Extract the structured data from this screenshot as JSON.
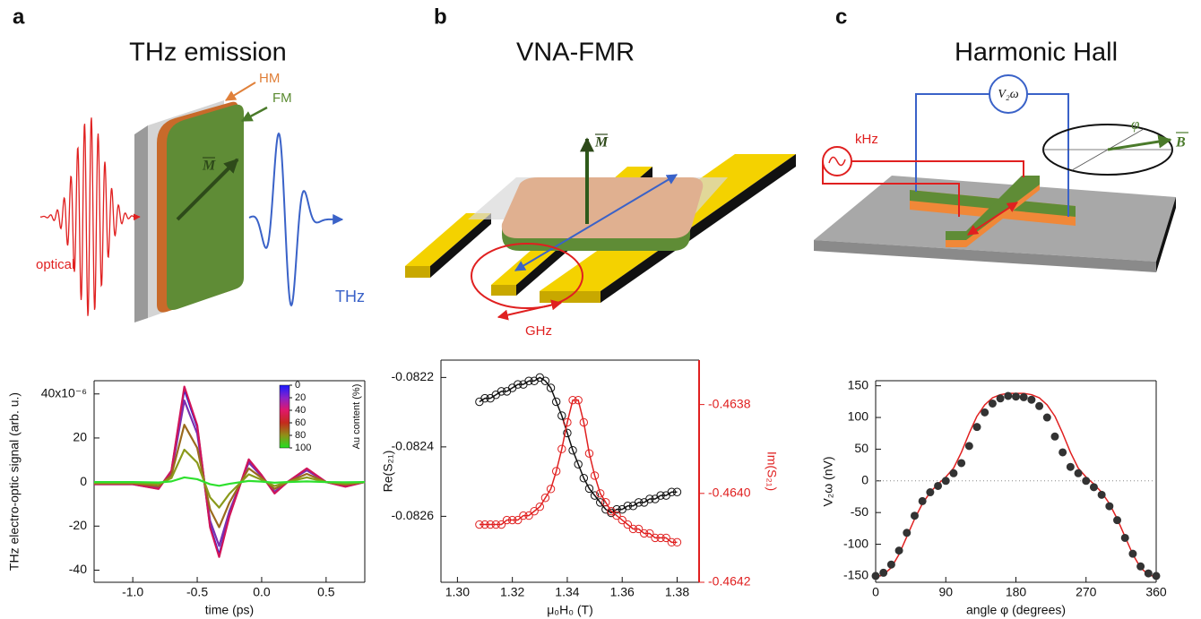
{
  "panels": [
    {
      "letter": "a",
      "title": "THz emission",
      "diagram_labels": [
        "HM",
        "FM",
        "M",
        "optical",
        "THz"
      ]
    },
    {
      "letter": "b",
      "title": "VNA-FMR",
      "diagram_labels": [
        "M",
        "GHz"
      ]
    },
    {
      "letter": "c",
      "title": "Harmonic Hall",
      "diagram_labels": [
        "kHz",
        "V₂ω",
        "φ",
        "B"
      ]
    }
  ],
  "chart_data": [
    {
      "type": "line",
      "xlabel": "time (ps)",
      "ylabel": "THz electro-optic signal (arb. u.)",
      "xlim": [
        -1.3,
        0.8
      ],
      "ylim": [
        -45.5,
        46
      ],
      "xticks": [
        {
          "value": -1,
          "label": "-1.0"
        },
        -0.5,
        {
          "value": 0,
          "label": "0.0"
        },
        0.5
      ],
      "yticks": [
        -40,
        -20,
        0,
        20,
        {
          "value": 40,
          "label": "40x10⁻⁶"
        }
      ],
      "colorbar": {
        "label": "Au content (%)",
        "lim": [
          0,
          100
        ],
        "ticks": [
          0,
          20,
          40,
          60,
          80,
          100
        ],
        "colors": [
          "#1a1aff",
          "#8a22c8",
          "#e0186a",
          "#c42a1c",
          "#8f9018",
          "#22e022"
        ]
      },
      "x": [
        -1.3,
        -1.0,
        -0.8,
        -0.7,
        -0.6,
        -0.5,
        -0.4,
        -0.33,
        -0.25,
        -0.1,
        0.0,
        0.1,
        0.2,
        0.35,
        0.5,
        0.65,
        0.8
      ],
      "series": [
        {
          "color": "#2020e0",
          "values": [
            -1,
            -1,
            -3,
            5,
            42,
            25,
            -20,
            -33,
            -15,
            10,
            3,
            -5,
            0,
            6,
            0,
            -2,
            0
          ]
        },
        {
          "color": "#7a2fb0",
          "values": [
            -0.9,
            -0.9,
            -2.6,
            4.4,
            37,
            22,
            -17.6,
            -29,
            -13.2,
            8.8,
            2.6,
            -4.4,
            0,
            5.3,
            0,
            -1.8,
            0
          ]
        },
        {
          "color": "#d0155a",
          "values": [
            -1,
            -1,
            -3.1,
            5.2,
            43.3,
            25.8,
            -20.6,
            -34,
            -15.5,
            10.3,
            3.1,
            -5.2,
            0,
            6.2,
            0,
            -2.1,
            0
          ]
        },
        {
          "color": "#9a6a1e",
          "values": [
            -0.6,
            -0.6,
            -1.9,
            3.1,
            26,
            15.5,
            -12.4,
            -20.5,
            -9.3,
            6.2,
            1.9,
            -3.1,
            0,
            3.7,
            0,
            -1.2,
            0
          ]
        },
        {
          "color": "#8a9a1a",
          "values": [
            -0.4,
            -0.4,
            -1,
            1.8,
            14.7,
            8.8,
            -7,
            -11.6,
            -5.3,
            3.5,
            1,
            -1.8,
            0,
            2.1,
            0,
            -0.7,
            0
          ]
        },
        {
          "color": "#2ee02e",
          "values": [
            0,
            0,
            -0.2,
            0.3,
            2.1,
            1.3,
            -1,
            -1.7,
            -0.8,
            0.5,
            0.2,
            -0.3,
            0,
            0.3,
            0,
            -0.1,
            0
          ]
        }
      ]
    },
    {
      "type": "scatter",
      "xlabel": "μ₀H₀ (T)",
      "ylabel": "Re(S₂₁)",
      "y2label": "Im(S₂₁)",
      "y2color": "#e02020",
      "xlim": [
        1.294,
        1.388
      ],
      "ylim": [
        -0.08279,
        -0.08215
      ],
      "y2lim": [
        -0.4642,
        -0.4637
      ],
      "xticks": [
        {
          "value": 1.3,
          "label": "1.30"
        },
        1.32,
        1.34,
        1.36,
        1.38
      ],
      "yticks": [
        -0.0826,
        -0.0824,
        -0.0822
      ],
      "y2ticks": [
        -0.4642,
        {
          "value": -0.464,
          "label": "-0.4640"
        },
        -0.4638
      ],
      "x": [
        1.308,
        1.31,
        1.312,
        1.314,
        1.316,
        1.318,
        1.32,
        1.322,
        1.324,
        1.326,
        1.328,
        1.33,
        1.332,
        1.334,
        1.336,
        1.338,
        1.34,
        1.342,
        1.344,
        1.346,
        1.348,
        1.35,
        1.352,
        1.354,
        1.356,
        1.358,
        1.36,
        1.362,
        1.364,
        1.366,
        1.368,
        1.37,
        1.372,
        1.374,
        1.376,
        1.378,
        1.38
      ],
      "series": [
        {
          "color": "#111111",
          "mode": "markers+line",
          "marker": "open",
          "values": [
            -0.08227,
            -0.08226,
            -0.08226,
            -0.08225,
            -0.08224,
            -0.08224,
            -0.08223,
            -0.08222,
            -0.08222,
            -0.08221,
            -0.08221,
            -0.0822,
            -0.08221,
            -0.08223,
            -0.08227,
            -0.08231,
            -0.08236,
            -0.08241,
            -0.08245,
            -0.08249,
            -0.08252,
            -0.08254,
            -0.08256,
            -0.08258,
            -0.08259,
            -0.08258,
            -0.08258,
            -0.08257,
            -0.08257,
            -0.08256,
            -0.08256,
            -0.08255,
            -0.08255,
            -0.08254,
            -0.08254,
            -0.08253,
            -0.08253
          ]
        },
        {
          "color": "#e02020",
          "mode": "markers+line",
          "marker": "open",
          "axis": "y2",
          "values": [
            -0.46407,
            -0.46407,
            -0.46407,
            -0.46407,
            -0.46407,
            -0.46406,
            -0.46406,
            -0.46406,
            -0.46405,
            -0.46405,
            -0.46404,
            -0.46403,
            -0.46401,
            -0.46399,
            -0.46395,
            -0.4639,
            -0.46384,
            -0.46379,
            -0.46379,
            -0.46384,
            -0.46391,
            -0.46396,
            -0.464,
            -0.46402,
            -0.46404,
            -0.46405,
            -0.46406,
            -0.46407,
            -0.46408,
            -0.46408,
            -0.46409,
            -0.46409,
            -0.4641,
            -0.4641,
            -0.4641,
            -0.46411,
            -0.46411
          ]
        }
      ]
    },
    {
      "type": "scatter",
      "xlabel": "angle φ (degrees)",
      "ylabel": "V₂ω (nV)",
      "zero_line": true,
      "xlim": [
        0,
        360
      ],
      "ylim": [
        -160,
        158
      ],
      "xticks": [
        0,
        90,
        180,
        270,
        360
      ],
      "yticks": [
        -150,
        -100,
        -50,
        0,
        50,
        100,
        150
      ],
      "x": [
        0,
        10,
        20,
        30,
        40,
        50,
        60,
        70,
        80,
        90,
        100,
        110,
        120,
        130,
        140,
        150,
        160,
        170,
        180,
        190,
        200,
        210,
        220,
        230,
        240,
        250,
        260,
        270,
        280,
        290,
        300,
        310,
        320,
        330,
        340,
        350,
        360
      ],
      "series": [
        {
          "color": "#e02020",
          "mode": "line",
          "values": [
            -152,
            -148,
            -137,
            -116,
            -88,
            -60,
            -36,
            -18,
            -5,
            6,
            20,
            45,
            75,
            102,
            120,
            131,
            136,
            138,
            138,
            138,
            136,
            131,
            120,
            102,
            75,
            45,
            20,
            6,
            -5,
            -18,
            -36,
            -60,
            -88,
            -116,
            -137,
            -148,
            -152
          ]
        },
        {
          "color": "#333333",
          "mode": "markers",
          "marker": "filled",
          "values": [
            -150,
            -145,
            -132,
            -110,
            -82,
            -55,
            -32,
            -18,
            -8,
            0,
            12,
            28,
            55,
            85,
            108,
            122,
            130,
            134,
            133,
            132,
            128,
            118,
            100,
            70,
            45,
            22,
            12,
            0,
            -10,
            -22,
            -40,
            -62,
            -90,
            -115,
            -135,
            -146,
            -150
          ]
        }
      ]
    }
  ]
}
